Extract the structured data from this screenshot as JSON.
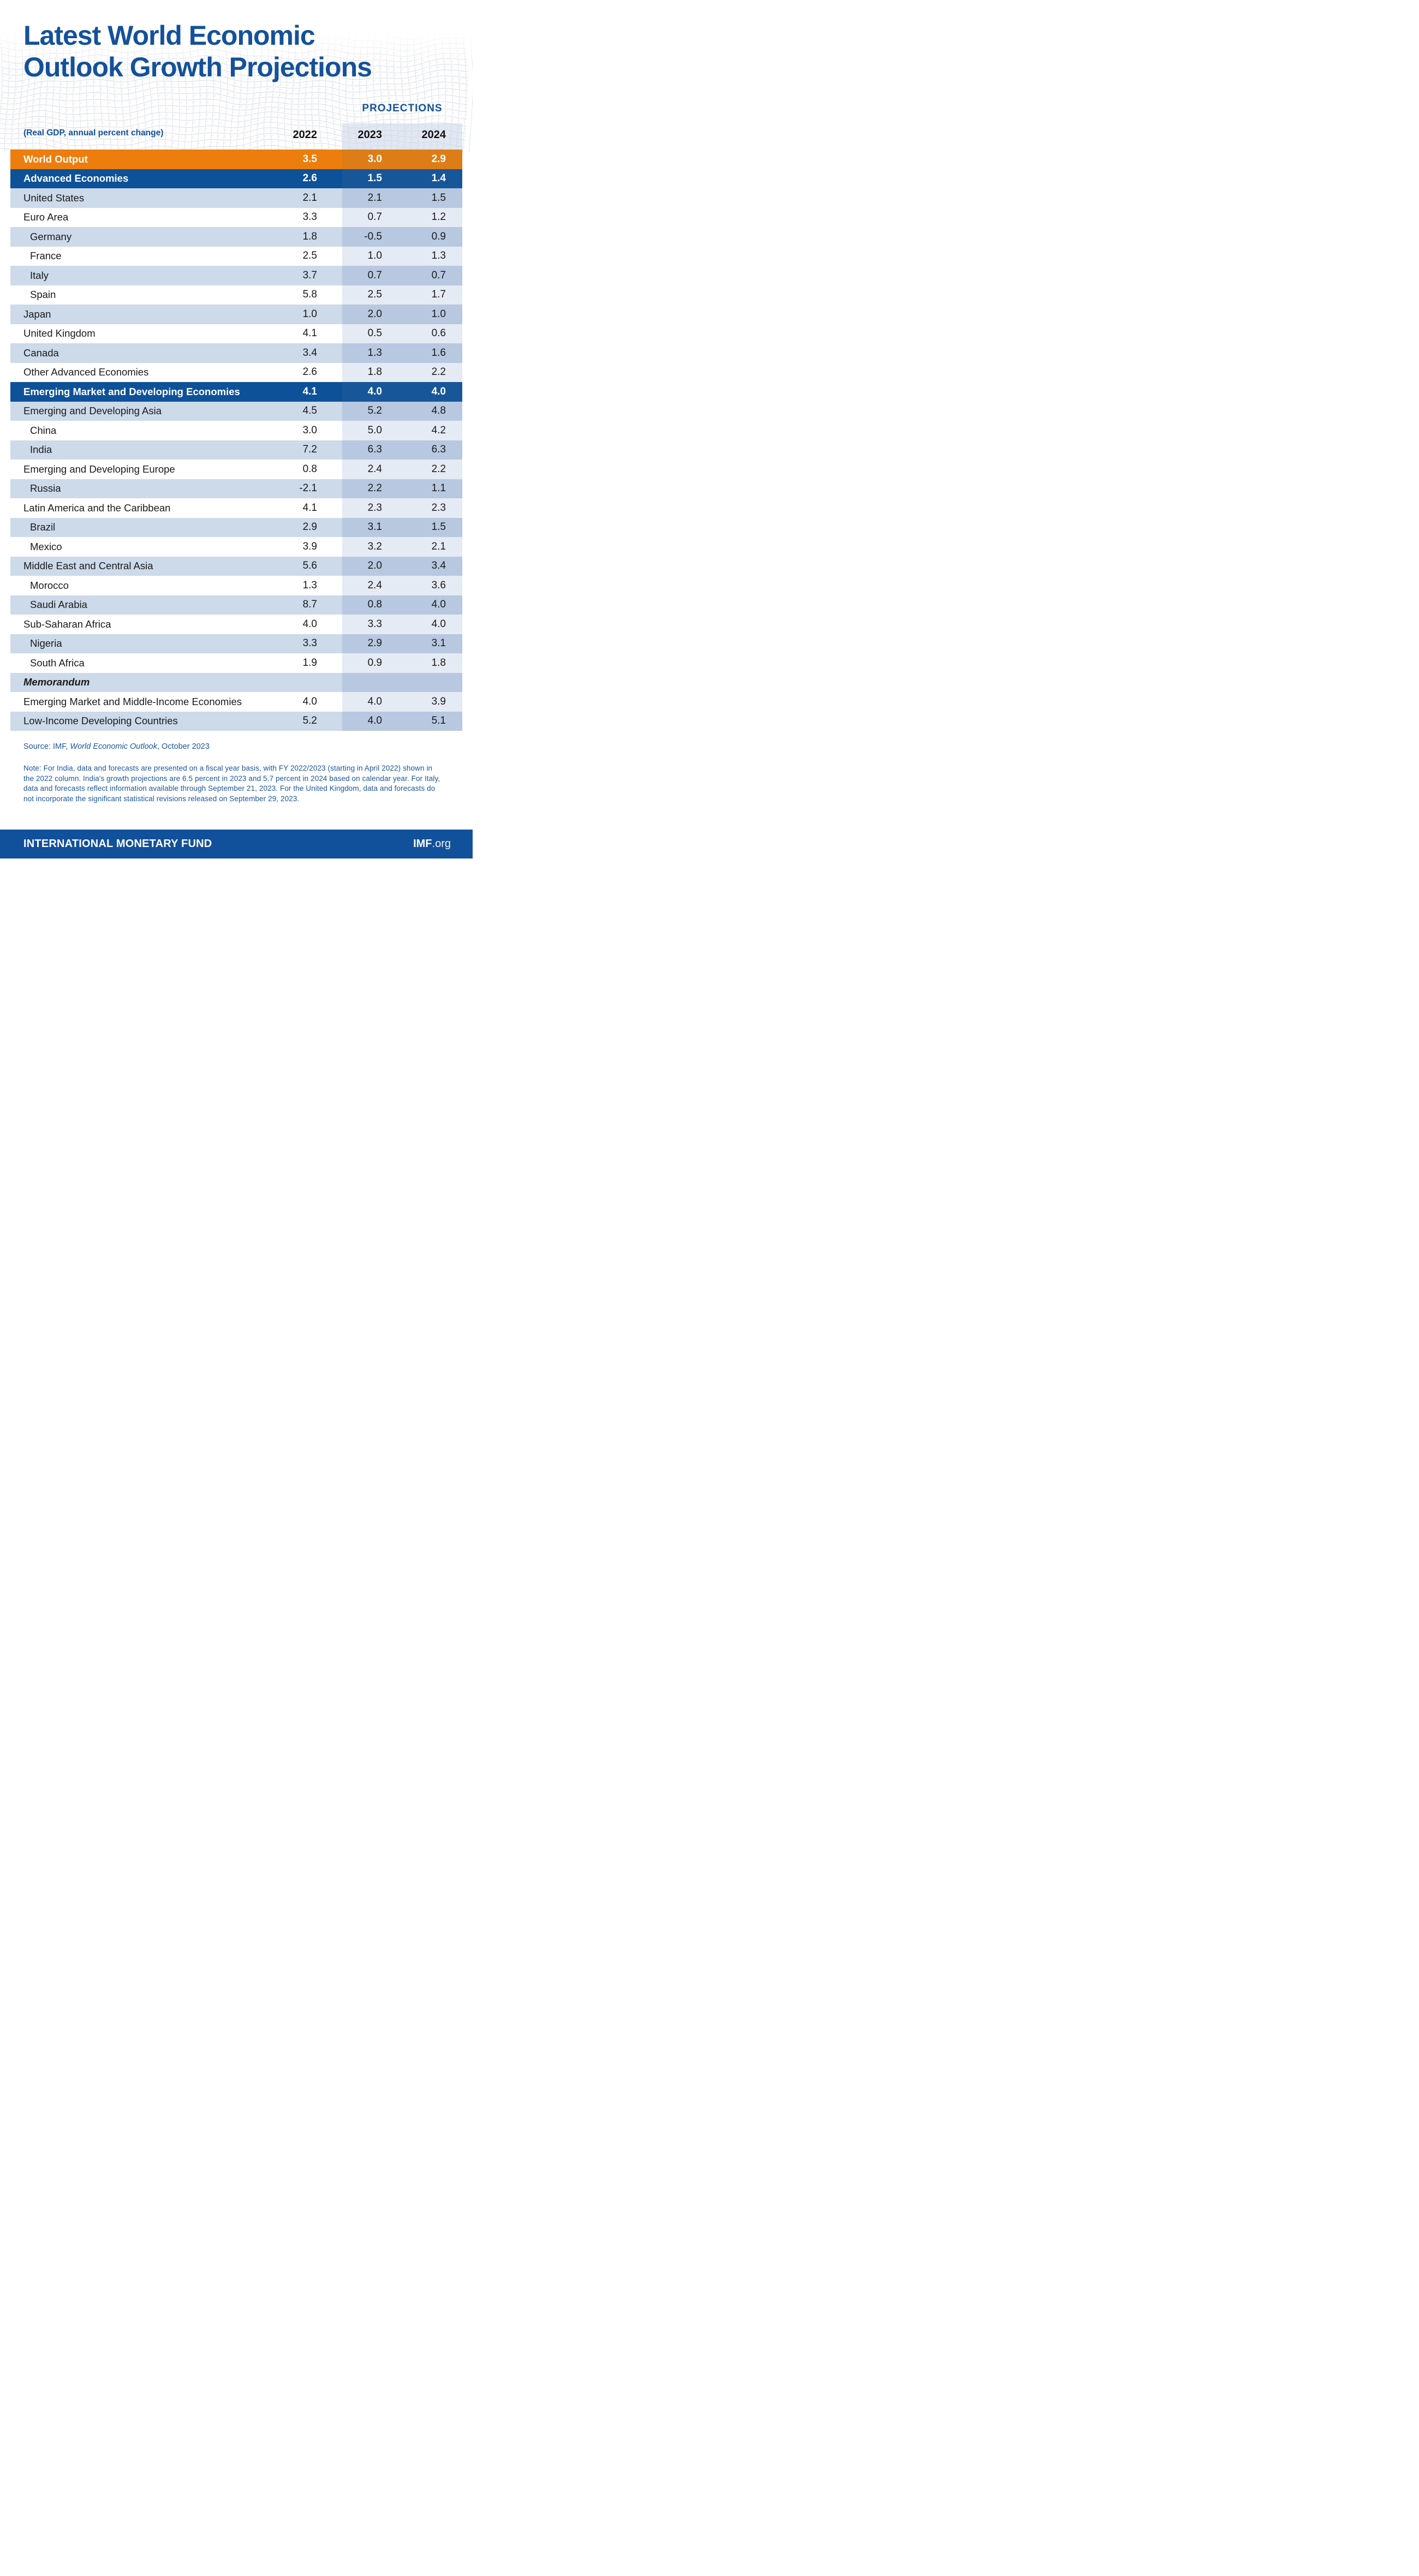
{
  "title": {
    "line1": "Latest World Economic",
    "line2": "Outlook Growth Projections"
  },
  "subtitle": "(Real GDP, annual percent change)",
  "chart_data": {
    "type": "table",
    "title": "Latest World Economic Outlook Growth Projections",
    "subtitle": "(Real GDP, annual percent change)",
    "column_group_label": "PROJECTIONS",
    "column_group_applies_to": [
      "2023",
      "2024"
    ],
    "columns": [
      "2022",
      "2023",
      "2024"
    ],
    "rows": [
      {
        "label": "World Output",
        "style": "orange",
        "indent": false,
        "values": [
          3.5,
          3.0,
          2.9
        ]
      },
      {
        "label": "Advanced Economies",
        "style": "navy",
        "indent": false,
        "values": [
          2.6,
          1.5,
          1.4
        ]
      },
      {
        "label": "United States",
        "style": "light",
        "indent": false,
        "values": [
          2.1,
          2.1,
          1.5
        ]
      },
      {
        "label": "Euro Area",
        "style": "white",
        "indent": false,
        "values": [
          3.3,
          0.7,
          1.2
        ]
      },
      {
        "label": "Germany",
        "style": "light",
        "indent": true,
        "values": [
          1.8,
          -0.5,
          0.9
        ]
      },
      {
        "label": "France",
        "style": "white",
        "indent": true,
        "values": [
          2.5,
          1.0,
          1.3
        ]
      },
      {
        "label": "Italy",
        "style": "light",
        "indent": true,
        "values": [
          3.7,
          0.7,
          0.7
        ]
      },
      {
        "label": "Spain",
        "style": "white",
        "indent": true,
        "values": [
          5.8,
          2.5,
          1.7
        ]
      },
      {
        "label": "Japan",
        "style": "light",
        "indent": false,
        "values": [
          1.0,
          2.0,
          1.0
        ]
      },
      {
        "label": "United Kingdom",
        "style": "white",
        "indent": false,
        "values": [
          4.1,
          0.5,
          0.6
        ]
      },
      {
        "label": "Canada",
        "style": "light",
        "indent": false,
        "values": [
          3.4,
          1.3,
          1.6
        ]
      },
      {
        "label": "Other Advanced Economies",
        "style": "white",
        "indent": false,
        "values": [
          2.6,
          1.8,
          2.2
        ]
      },
      {
        "label": "Emerging Market and Developing Economies",
        "style": "navy",
        "indent": false,
        "values": [
          4.1,
          4.0,
          4.0
        ]
      },
      {
        "label": "Emerging and Developing Asia",
        "style": "light",
        "indent": false,
        "values": [
          4.5,
          5.2,
          4.8
        ]
      },
      {
        "label": "China",
        "style": "white",
        "indent": true,
        "values": [
          3.0,
          5.0,
          4.2
        ]
      },
      {
        "label": "India",
        "style": "light",
        "indent": true,
        "values": [
          7.2,
          6.3,
          6.3
        ]
      },
      {
        "label": "Emerging and Developing Europe",
        "style": "white",
        "indent": false,
        "values": [
          0.8,
          2.4,
          2.2
        ]
      },
      {
        "label": "Russia",
        "style": "light",
        "indent": true,
        "values": [
          -2.1,
          2.2,
          1.1
        ]
      },
      {
        "label": "Latin America and the Caribbean",
        "style": "white",
        "indent": false,
        "values": [
          4.1,
          2.3,
          2.3
        ]
      },
      {
        "label": "Brazil",
        "style": "light",
        "indent": true,
        "values": [
          2.9,
          3.1,
          1.5
        ]
      },
      {
        "label": "Mexico",
        "style": "white",
        "indent": true,
        "values": [
          3.9,
          3.2,
          2.1
        ]
      },
      {
        "label": "Middle East and Central Asia",
        "style": "light",
        "indent": false,
        "values": [
          5.6,
          2.0,
          3.4
        ]
      },
      {
        "label": "Morocco",
        "style": "white",
        "indent": true,
        "values": [
          1.3,
          2.4,
          3.6
        ]
      },
      {
        "label": "Saudi Arabia",
        "style": "light",
        "indent": true,
        "values": [
          8.7,
          0.8,
          4.0
        ]
      },
      {
        "label": "Sub-Saharan Africa",
        "style": "white",
        "indent": false,
        "values": [
          4.0,
          3.3,
          4.0
        ]
      },
      {
        "label": "Nigeria",
        "style": "light",
        "indent": true,
        "values": [
          3.3,
          2.9,
          3.1
        ]
      },
      {
        "label": "South Africa",
        "style": "white",
        "indent": true,
        "values": [
          1.9,
          0.9,
          1.8
        ]
      },
      {
        "label": "Memorandum",
        "style": "light",
        "indent": false,
        "memo": true,
        "values": null
      },
      {
        "label": "Emerging Market and Middle-Income Economies",
        "style": "white",
        "indent": false,
        "values": [
          4.0,
          4.0,
          3.9
        ]
      },
      {
        "label": "Low-Income Developing Countries",
        "style": "light",
        "indent": false,
        "values": [
          5.2,
          4.0,
          5.1
        ]
      }
    ]
  },
  "source": {
    "prefix": "Source: IMF, ",
    "italic": "World Economic Outlook",
    "suffix": ", October 2023"
  },
  "note": "Note: For India, data and forecasts are presented on a fiscal year basis, with FY 2022/2023 (starting in April 2022) shown in the 2022 column. India's growth projections are 6.5 percent in 2023 and 5.7 percent in 2024 based on calendar year. For Italy, data and forecasts reflect information available through September 21, 2023. For the United Kingdom, data and forecasts do not incorporate the significant statistical revisions released on September 29, 2023.",
  "footer": {
    "org": "INTERNATIONAL MONETARY FUND",
    "site_bold": "IMF",
    "site_rest": ".org"
  },
  "colors": {
    "title_blue": "#14519B",
    "note_blue": "#1C56A0",
    "orange_base": "#ED7D0C",
    "orange_proj": "#DE7D17",
    "navy_base": "#0D5199",
    "navy_proj": "#175699",
    "light_base": "#CCDAEA",
    "light_proj": "#B7C8E0",
    "white_proj": "#E5EBF4",
    "header_shade": "rgba(202,213,231,0.55)",
    "footer_bg": "#11509A"
  }
}
